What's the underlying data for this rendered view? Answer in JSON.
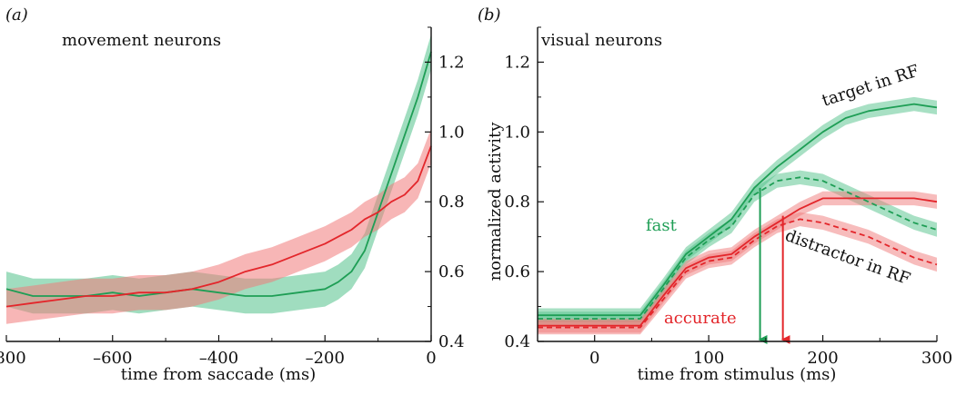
{
  "colors": {
    "fast": "#1e9e55",
    "accurate": "#e3262b",
    "fast_band": "#52c18a",
    "accurate_band": "#f07a7a",
    "axis": "#111111"
  },
  "chart_data": [
    {
      "type": "line",
      "panel_label": "(a)",
      "title": "movement neurons",
      "xlabel": "time from saccade (ms)",
      "ylabel": "",
      "xlim": [
        -800,
        0
      ],
      "ylim": [
        0.4,
        1.3
      ],
      "xticks": [
        -800,
        -600,
        -400,
        -200,
        0
      ],
      "xtick_labels": [
        "–800",
        "–600",
        "–400",
        "–200",
        "0"
      ],
      "yticks": [
        0.4,
        0.6,
        0.8,
        1.0,
        1.2
      ],
      "ytick_labels": [
        "0.4",
        "0.6",
        "0.8",
        "1.0",
        "1.2"
      ],
      "y_axis_side": "right",
      "grid": false,
      "series": [
        {
          "color_key": "fast",
          "x": [
            -800,
            -750,
            -700,
            -650,
            -600,
            -550,
            -500,
            -450,
            -400,
            -350,
            -300,
            -250,
            -200,
            -175,
            -150,
            -125,
            -100,
            -75,
            -50,
            -25,
            0
          ],
          "y": [
            0.55,
            0.53,
            0.53,
            0.53,
            0.54,
            0.53,
            0.54,
            0.55,
            0.54,
            0.53,
            0.53,
            0.54,
            0.55,
            0.57,
            0.6,
            0.66,
            0.77,
            0.88,
            0.99,
            1.1,
            1.23
          ],
          "band": [
            0.05,
            0.05,
            0.05,
            0.05,
            0.05,
            0.05,
            0.05,
            0.05,
            0.05,
            0.05,
            0.05,
            0.05,
            0.05,
            0.05,
            0.05,
            0.05,
            0.05,
            0.05,
            0.05,
            0.05,
            0.05
          ]
        },
        {
          "color_key": "accurate",
          "x": [
            -800,
            -750,
            -700,
            -650,
            -600,
            -550,
            -500,
            -450,
            -400,
            -350,
            -300,
            -250,
            -200,
            -175,
            -150,
            -125,
            -100,
            -75,
            -50,
            -25,
            0
          ],
          "y": [
            0.5,
            0.51,
            0.52,
            0.53,
            0.53,
            0.54,
            0.54,
            0.55,
            0.57,
            0.6,
            0.62,
            0.65,
            0.68,
            0.7,
            0.72,
            0.75,
            0.77,
            0.8,
            0.82,
            0.86,
            0.96
          ],
          "band": [
            0.05,
            0.05,
            0.05,
            0.05,
            0.05,
            0.05,
            0.05,
            0.05,
            0.05,
            0.05,
            0.05,
            0.05,
            0.05,
            0.05,
            0.05,
            0.05,
            0.05,
            0.05,
            0.05,
            0.05,
            0.05
          ]
        }
      ]
    },
    {
      "type": "line",
      "panel_label": "(b)",
      "title": "visual neurons",
      "xlabel": "time from stimulus (ms)",
      "ylabel": "normalized activity",
      "xlim": [
        -50,
        300
      ],
      "ylim": [
        0.4,
        1.3
      ],
      "xticks": [
        0,
        100,
        200,
        300
      ],
      "xtick_labels": [
        "0",
        "100",
        "200",
        "300"
      ],
      "yticks": [
        0.4,
        0.6,
        0.8,
        1.0,
        1.2
      ],
      "ytick_labels": [
        "0.4",
        "0.6",
        "0.8",
        "1.0",
        "1.2"
      ],
      "y_axis_side": "left",
      "grid": false,
      "series": [
        {
          "name": "target in RF",
          "color_key": "fast",
          "dashed": false,
          "x": [
            -50,
            0,
            40,
            60,
            80,
            100,
            120,
            140,
            160,
            180,
            200,
            220,
            240,
            260,
            280,
            300
          ],
          "y": [
            0.475,
            0.475,
            0.475,
            0.56,
            0.65,
            0.7,
            0.75,
            0.84,
            0.9,
            0.95,
            1.0,
            1.04,
            1.06,
            1.07,
            1.08,
            1.07
          ],
          "band": 0.02
        },
        {
          "name": "distractor in RF",
          "color_key": "fast",
          "dashed": true,
          "x": [
            -50,
            0,
            40,
            60,
            80,
            100,
            120,
            140,
            160,
            180,
            200,
            220,
            240,
            260,
            280,
            300
          ],
          "y": [
            0.465,
            0.465,
            0.465,
            0.55,
            0.64,
            0.69,
            0.73,
            0.82,
            0.86,
            0.87,
            0.86,
            0.83,
            0.8,
            0.77,
            0.74,
            0.72
          ],
          "band": 0.02
        },
        {
          "name": "target in RF",
          "color_key": "accurate",
          "dashed": false,
          "x": [
            -50,
            0,
            40,
            60,
            80,
            100,
            120,
            140,
            160,
            180,
            200,
            220,
            240,
            260,
            280,
            300
          ],
          "y": [
            0.445,
            0.445,
            0.445,
            0.53,
            0.61,
            0.64,
            0.65,
            0.7,
            0.74,
            0.78,
            0.81,
            0.81,
            0.81,
            0.81,
            0.81,
            0.8
          ],
          "band": 0.02
        },
        {
          "name": "distractor in RF",
          "color_key": "accurate",
          "dashed": true,
          "x": [
            -50,
            0,
            40,
            60,
            80,
            100,
            120,
            140,
            160,
            180,
            200,
            220,
            240,
            260,
            280,
            300
          ],
          "y": [
            0.44,
            0.44,
            0.44,
            0.52,
            0.6,
            0.63,
            0.64,
            0.69,
            0.73,
            0.75,
            0.74,
            0.72,
            0.7,
            0.67,
            0.64,
            0.62
          ],
          "band": 0.02
        }
      ],
      "annotations": {
        "target_label": "target in RF",
        "distractor_label": "distractor in RF",
        "fast_label": "fast",
        "accurate_label": "accurate"
      },
      "arrows": [
        {
          "color_key": "fast",
          "x": 145,
          "y_from": 0.84,
          "y_to": 0.4
        },
        {
          "color_key": "accurate",
          "x": 165,
          "y_from": 0.76,
          "y_to": 0.4
        }
      ]
    }
  ]
}
